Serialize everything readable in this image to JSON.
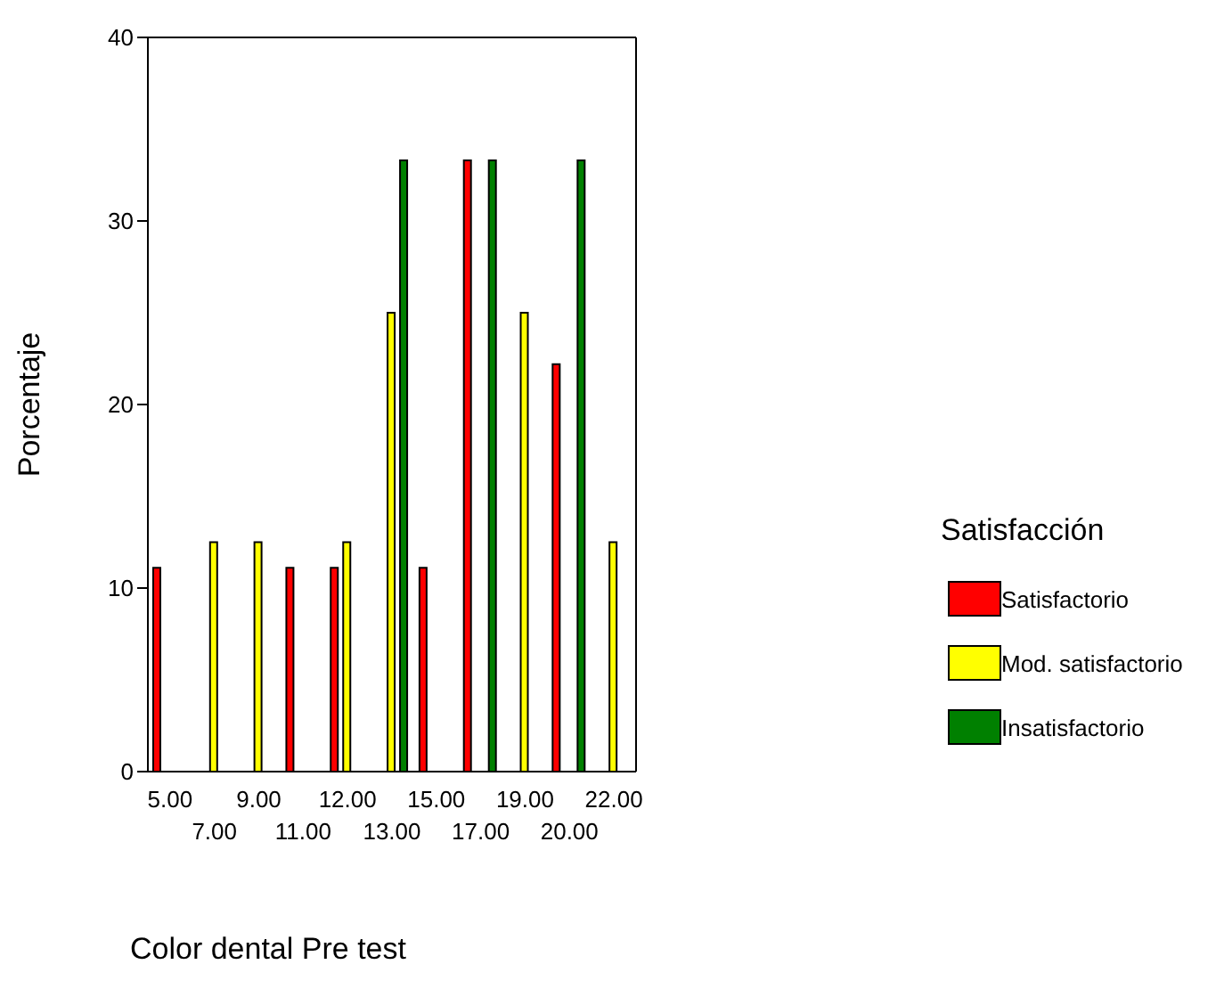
{
  "chart_data": {
    "type": "bar",
    "xlabel": "Color dental Pre test",
    "ylabel": "Porcentaje",
    "legend_title": "Satisfacción",
    "categories": [
      "5.00",
      "7.00",
      "9.00",
      "11.00",
      "12.00",
      "13.00",
      "15.00",
      "17.00",
      "19.00",
      "20.00",
      "22.00"
    ],
    "series": [
      {
        "name": "Satisfactorio",
        "color": "#ff0000",
        "values": [
          11.1,
          null,
          null,
          11.1,
          11.1,
          null,
          11.1,
          33.3,
          null,
          22.2,
          null
        ]
      },
      {
        "name": "Mod. satisfactorio",
        "color": "#ffff00",
        "values": [
          null,
          12.5,
          12.5,
          null,
          12.5,
          25,
          null,
          null,
          25,
          null,
          12.5
        ]
      },
      {
        "name": "Insatisfactorio",
        "color": "#008000",
        "values": [
          null,
          null,
          null,
          null,
          null,
          33.3,
          null,
          33.3,
          null,
          33.3,
          null
        ]
      }
    ],
    "ylim": [
      0,
      40
    ],
    "yticks": [
      0,
      10,
      20,
      30,
      40
    ],
    "grid": false,
    "legend": "right"
  }
}
